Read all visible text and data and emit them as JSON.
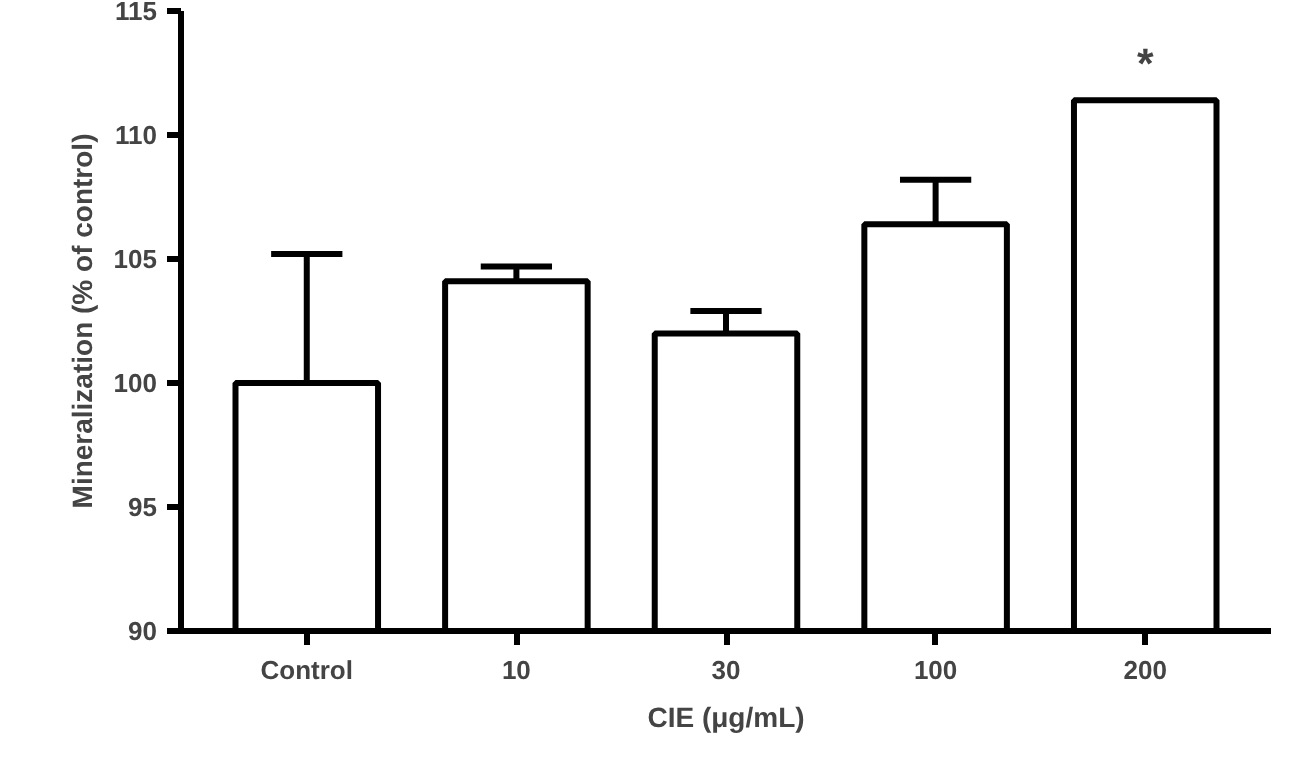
{
  "chart_data": {
    "type": "bar",
    "xlabel": "CIE (μg/mL)",
    "ylabel": "Mineralization (% of control)",
    "categories": [
      "Control",
      "10",
      "30",
      "100",
      "200"
    ],
    "values": [
      100,
      104.1,
      102.0,
      106.4,
      111.4
    ],
    "errors": [
      [
        100,
        105.2
      ],
      [
        104.1,
        104.7
      ],
      [
        102.0,
        102.9
      ],
      [
        106.4,
        108.2
      ],
      null
    ],
    "color": "#ffffff",
    "ylim": [
      90,
      115
    ],
    "yticks": [
      90,
      95,
      100,
      105,
      110,
      115
    ],
    "annotations": [
      {
        "text": "*",
        "x": "200",
        "y": 111.4
      }
    ],
    "grid": false
  }
}
